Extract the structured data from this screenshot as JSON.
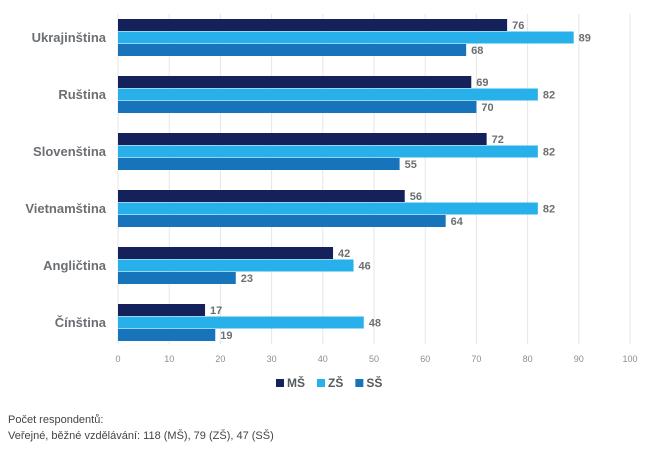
{
  "chart_data": {
    "type": "bar",
    "orientation": "horizontal",
    "categories": [
      "Ukrajinština",
      "Ruština",
      "Slovenština",
      "Vietnamština",
      "Angličtina",
      "Čínština"
    ],
    "series": [
      {
        "name": "MŠ",
        "color": "#14215a",
        "values": [
          76,
          69,
          72,
          56,
          42,
          17
        ]
      },
      {
        "name": "ZŠ",
        "color": "#27b0ea",
        "values": [
          89,
          82,
          82,
          82,
          46,
          48
        ]
      },
      {
        "name": "SŠ",
        "color": "#1774bb",
        "values": [
          68,
          70,
          55,
          64,
          23,
          19
        ]
      }
    ],
    "xlim": [
      0,
      100
    ],
    "xticks": [
      "0",
      "10",
      "20",
      "30",
      "40",
      "50",
      "60",
      "70",
      "80",
      "90",
      "100"
    ],
    "grid": "vertical",
    "legend": "bottom-center",
    "data_labels": true
  },
  "footnote": {
    "line1": "Počet respondentů:",
    "line2": "Veřejné, běžné vzdělávání: 118 (MŠ), 79 (ZŠ), 47 (SŠ)"
  }
}
